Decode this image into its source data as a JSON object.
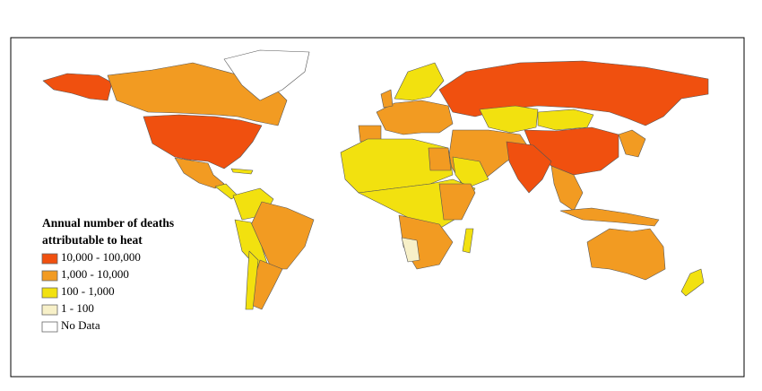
{
  "legend": {
    "title": [
      "Annual number of deaths",
      "attributable to heat"
    ],
    "items": [
      {
        "label": "10,000 - 100,000",
        "color": "#f0500f"
      },
      {
        "label": "1,000 - 10,000",
        "color": "#f29b22"
      },
      {
        "label": "100 - 1,000",
        "color": "#f2e10f"
      },
      {
        "label": "1 - 100",
        "color": "#f7f0c8"
      },
      {
        "label": "No Data",
        "color": "#ffffff"
      }
    ]
  }
}
